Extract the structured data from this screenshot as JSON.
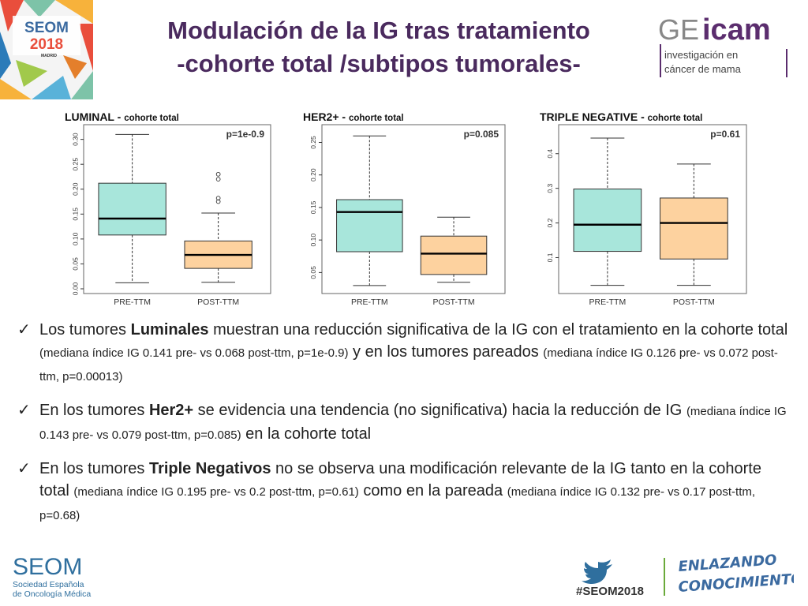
{
  "logos": {
    "seom2018": {
      "line1": "SEOM",
      "line2": "2018",
      "city": "MADRID"
    },
    "geicam": {
      "name_a": "GE",
      "name_b": "icam",
      "tag1": "investigación en",
      "tag2": "cáncer de mama"
    },
    "seom": {
      "name": "SEOM",
      "line1": "Sociedad Española",
      "line2": "de Oncología Médica"
    },
    "hashtag": "#SEOM2018",
    "enlazando": {
      "line1": "ENLAZANDO",
      "line2": "CONOCIMIENTO"
    }
  },
  "title": {
    "line1": "Modulación de la IG  tras tratamiento",
    "line2": "-cohorte total /subtipos tumorales-"
  },
  "chart_data": [
    {
      "type": "box",
      "title": "LUMINAL - ",
      "subtitle": "cohorte total",
      "annotation": "p=1e-0.9",
      "categories": [
        "PRE-TTM",
        "POST-TTM"
      ],
      "ylim": [
        0,
        0.32
      ],
      "yticks": [
        "0.00",
        "0.05",
        "0.10",
        "0.15",
        "0.20",
        "0.25",
        "0.30"
      ],
      "ytick_values": [
        0,
        0.05,
        0.1,
        0.15,
        0.2,
        0.25,
        0.3
      ],
      "boxes": [
        {
          "min": 0.012,
          "q1": 0.108,
          "median": 0.141,
          "q3": 0.212,
          "max": 0.31,
          "color": "#a8e6db",
          "outliers": []
        },
        {
          "min": 0.013,
          "q1": 0.041,
          "median": 0.068,
          "q3": 0.096,
          "max": 0.152,
          "color": "#fdd29f",
          "outliers": [
            0.175,
            0.182,
            0.22,
            0.23
          ]
        }
      ]
    },
    {
      "type": "box",
      "title": "HER2+ - ",
      "subtitle": "cohorte total",
      "annotation": "p=0.085",
      "categories": [
        "PRE-TTM",
        "POST-TTM"
      ],
      "ylim": [
        0.025,
        0.27
      ],
      "yticks": [
        "0.05",
        "0.10",
        "0.15",
        "0.20",
        "0.25"
      ],
      "ytick_values": [
        0.05,
        0.1,
        0.15,
        0.2,
        0.25
      ],
      "boxes": [
        {
          "min": 0.03,
          "q1": 0.082,
          "median": 0.143,
          "q3": 0.162,
          "max": 0.26,
          "color": "#a8e6db",
          "outliers": []
        },
        {
          "min": 0.035,
          "q1": 0.047,
          "median": 0.079,
          "q3": 0.106,
          "max": 0.135,
          "color": "#fdd29f",
          "outliers": []
        }
      ]
    },
    {
      "type": "box",
      "title": "TRIPLE NEGATIVE - ",
      "subtitle": "cohorte total",
      "annotation": "p=0.61",
      "categories": [
        "PRE-TTM",
        "POST-TTM"
      ],
      "ylim": [
        0.01,
        0.47
      ],
      "yticks": [
        "0.1",
        "0.2",
        "0.3",
        "0.4"
      ],
      "ytick_values": [
        0.1,
        0.2,
        0.3,
        0.4
      ],
      "boxes": [
        {
          "min": 0.02,
          "q1": 0.118,
          "median": 0.195,
          "q3": 0.298,
          "max": 0.445,
          "color": "#a8e6db",
          "outliers": []
        },
        {
          "min": 0.02,
          "q1": 0.096,
          "median": 0.2,
          "q3": 0.272,
          "max": 0.37,
          "color": "#fdd29f",
          "outliers": []
        }
      ]
    }
  ],
  "bullets": [
    {
      "check": "✓",
      "parts": [
        {
          "text": "Los tumores ",
          "style": "normal"
        },
        {
          "text": "Luminales",
          "style": "bold"
        },
        {
          "text": " muestran una reducción significativa de la IG con el tratamiento en la cohorte total ",
          "style": "normal"
        },
        {
          "text": "(mediana índice IG 0.141 pre- vs 0.068 post-ttm, p=1e-0.9)",
          "style": "small"
        },
        {
          "text": " y en los tumores pareados ",
          "style": "normal"
        },
        {
          "text": "(mediana índice IG 0.126 pre- vs 0.072 post-ttm, p=0.00013)",
          "style": "small"
        }
      ]
    },
    {
      "check": "✓",
      "parts": [
        {
          "text": "En los tumores ",
          "style": "normal"
        },
        {
          "text": "Her2+",
          "style": "bold"
        },
        {
          "text": " se evidencia una tendencia (no significativa) hacia la reducción de IG ",
          "style": "normal"
        },
        {
          "text": "(mediana índice IG 0.143 pre- vs 0.079 post-ttm, p=0.085)",
          "style": "small"
        },
        {
          "text": " en la cohorte total",
          "style": "normal"
        }
      ]
    },
    {
      "check": "✓",
      "parts": [
        {
          "text": "En los tumores ",
          "style": "normal"
        },
        {
          "text": "Triple Negativos",
          "style": "bold"
        },
        {
          "text": " no se observa una modificación relevante de la IG tanto en la cohorte total ",
          "style": "normal"
        },
        {
          "text": "(mediana índice IG 0.195 pre- vs 0.2 post-ttm, p=0.61)",
          "style": "small"
        },
        {
          "text": " como en la pareada ",
          "style": "normal"
        },
        {
          "text": "(mediana índice IG 0.132 pre- vs 0.17 post-ttm, p=0.68)",
          "style": "small"
        }
      ]
    }
  ]
}
